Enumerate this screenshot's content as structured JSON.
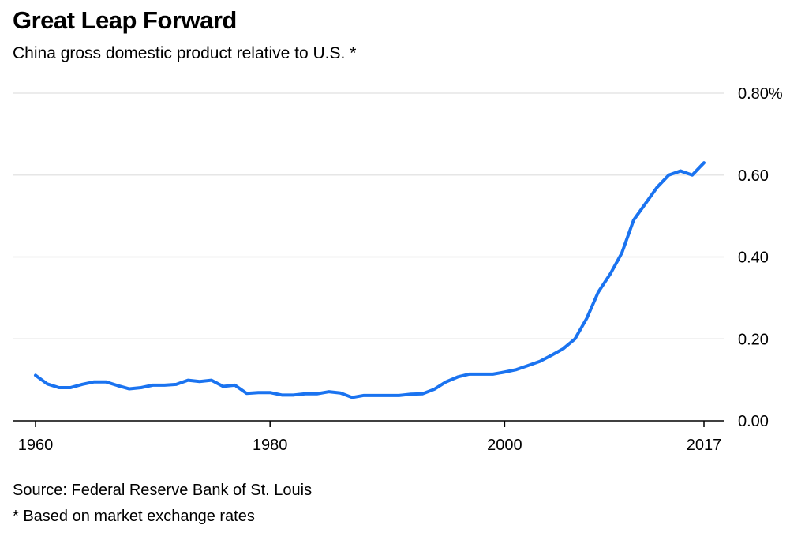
{
  "header": {
    "title": "Great Leap Forward",
    "subtitle": "China gross domestic product relative to U.S. *"
  },
  "footer": {
    "source": "Source: Federal Reserve Bank of St. Louis",
    "note": "* Based on market exchange rates"
  },
  "colors": {
    "line": "#1a73f0",
    "grid": "#e6e6e6",
    "axis": "#000000"
  },
  "chart_data": {
    "type": "line",
    "title": "Great Leap Forward",
    "subtitle": "China gross domestic product relative to U.S. *",
    "xlabel": "",
    "ylabel": "",
    "xlim": [
      1960,
      2017
    ],
    "ylim": [
      0,
      0.8
    ],
    "x_ticks": [
      1960,
      1980,
      2000,
      2017
    ],
    "y_ticks": [
      {
        "value": 0.8,
        "label": "0.80%"
      },
      {
        "value": 0.6,
        "label": "0.60"
      },
      {
        "value": 0.4,
        "label": "0.40"
      },
      {
        "value": 0.2,
        "label": "0.20"
      },
      {
        "value": 0.0,
        "label": "0.00"
      }
    ],
    "grid": true,
    "series": [
      {
        "x": [
          1960,
          1961,
          1962,
          1963,
          1964,
          1965,
          1966,
          1967,
          1968,
          1969,
          1970,
          1971,
          1972,
          1973,
          1974,
          1975,
          1976,
          1977,
          1978,
          1979,
          1980,
          1981,
          1982,
          1983,
          1984,
          1985,
          1986,
          1987,
          1988,
          1989,
          1990,
          1991,
          1992,
          1993,
          1994,
          1995,
          1996,
          1997,
          1998,
          1999,
          2000,
          2001,
          2002,
          2003,
          2004,
          2005,
          2006,
          2007,
          2008,
          2009,
          2010,
          2011,
          2012,
          2013,
          2014,
          2015,
          2016,
          2017
        ],
        "values": [
          0.111,
          0.09,
          0.081,
          0.081,
          0.089,
          0.095,
          0.095,
          0.086,
          0.078,
          0.081,
          0.087,
          0.087,
          0.089,
          0.099,
          0.096,
          0.099,
          0.084,
          0.087,
          0.067,
          0.069,
          0.069,
          0.063,
          0.063,
          0.066,
          0.066,
          0.071,
          0.068,
          0.057,
          0.062,
          0.062,
          0.062,
          0.062,
          0.065,
          0.066,
          0.077,
          0.095,
          0.107,
          0.114,
          0.114,
          0.114,
          0.119,
          0.125,
          0.135,
          0.145,
          0.16,
          0.176,
          0.2,
          0.25,
          0.315,
          0.358,
          0.41,
          0.49,
          0.53,
          0.57,
          0.6,
          0.61,
          0.6,
          0.63
        ]
      }
    ]
  }
}
